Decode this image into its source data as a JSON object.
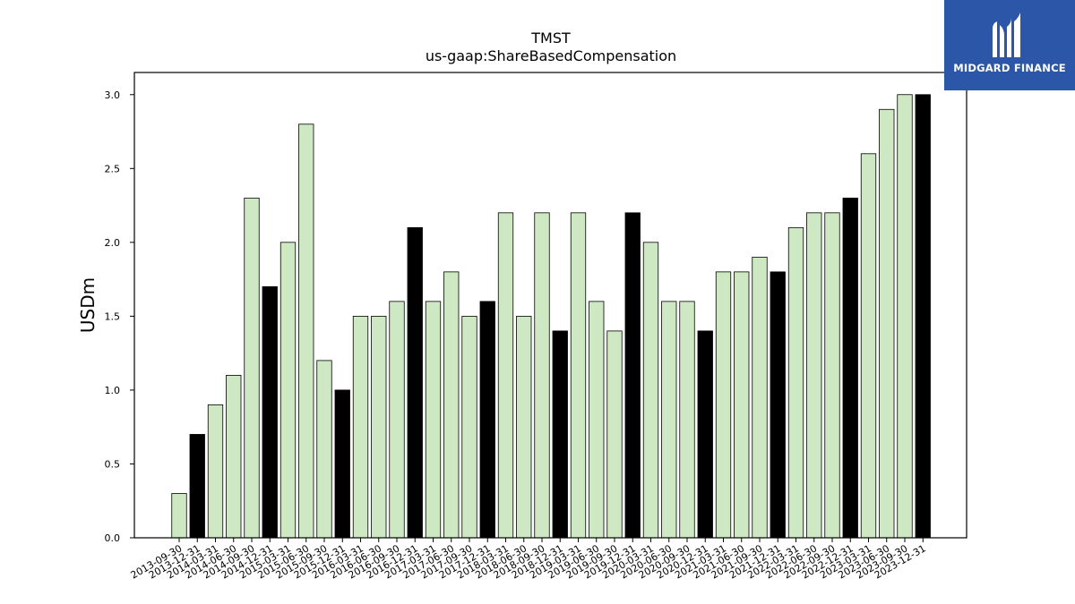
{
  "logo": {
    "text": "MIDGARD FINANCE",
    "icon": "midgard-logo-icon",
    "background": "#2c57a8"
  },
  "chart_data": {
    "type": "bar",
    "title": "TMST",
    "subtitle": "us-gaap:ShareBasedCompensation",
    "xlabel": "",
    "ylabel": "USDm",
    "ylim": [
      0,
      3.15
    ],
    "yticks": [
      "0.0",
      "0.5",
      "1.0",
      "1.5",
      "2.0",
      "2.5",
      "3.0"
    ],
    "grid": false,
    "colors": {
      "quarter": "#cde8c2",
      "year_end": "#000000",
      "edge": "#000000"
    },
    "categories": [
      "2013-09-30",
      "2013-12-31",
      "2014-03-31",
      "2014-06-30",
      "2014-09-30",
      "2014-12-31",
      "2015-03-31",
      "2015-06-30",
      "2015-09-30",
      "2015-12-31",
      "2016-03-31",
      "2016-06-30",
      "2016-09-30",
      "2016-12-31",
      "2017-03-31",
      "2017-06-30",
      "2017-09-30",
      "2017-12-31",
      "2018-03-31",
      "2018-06-30",
      "2018-09-30",
      "2018-12-31",
      "2019-03-31",
      "2019-06-30",
      "2019-09-30",
      "2019-12-31",
      "2020-03-31",
      "2020-06-30",
      "2020-09-30",
      "2020-12-31",
      "2021-03-31",
      "2021-06-30",
      "2021-09-30",
      "2021-12-31",
      "2022-03-31",
      "2022-06-30",
      "2022-09-30",
      "2022-12-31",
      "2023-03-31",
      "2023-06-30",
      "2023-09-30",
      "2023-12-31"
    ],
    "values": [
      0.3,
      0.7,
      0.9,
      1.1,
      2.3,
      1.7,
      2.0,
      2.8,
      1.2,
      1.0,
      1.5,
      1.5,
      1.6,
      2.1,
      1.6,
      1.8,
      1.5,
      1.6,
      2.2,
      1.5,
      2.2,
      1.4,
      2.2,
      1.6,
      1.4,
      2.2,
      2.0,
      1.6,
      1.6,
      1.4,
      1.8,
      1.8,
      1.9,
      1.8,
      2.1,
      2.2,
      2.2,
      2.3,
      2.6,
      2.9,
      3.0,
      3.0
    ]
  }
}
